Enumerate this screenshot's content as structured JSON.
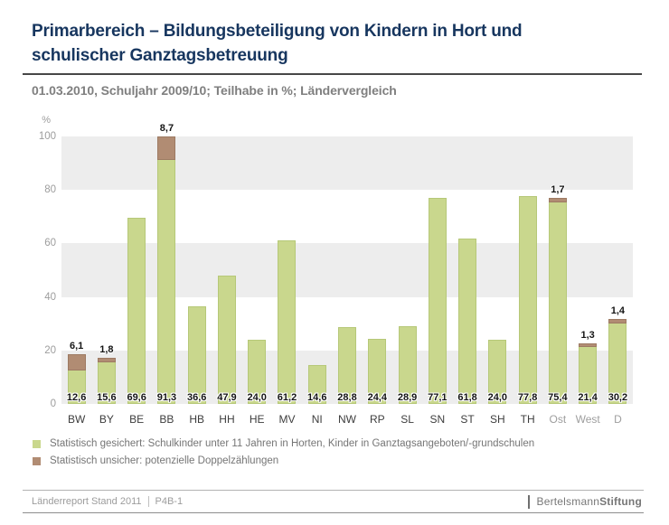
{
  "header": {
    "title_line1": "Primarbereich – Bildungsbeteiligung von Kindern in Hort und",
    "title_line2": "schulischer Ganztagsbetreuung",
    "subtitle": "01.03.2010, Schuljahr 2009/10; Teilhabe in %; Ländervergleich"
  },
  "chart_data": {
    "type": "bar",
    "stacked": true,
    "title": "Primarbereich – Bildungsbeteiligung von Kindern in Hort und schulischer Ganztagsbetreuung",
    "subtitle": "01.03.2010, Schuljahr 2009/10; Teilhabe in %; Ländervergleich",
    "unit_label": "%",
    "ylim": [
      0,
      100
    ],
    "y_ticks": [
      100,
      80,
      60,
      40,
      20,
      0
    ],
    "bands": [
      [
        0,
        20
      ],
      [
        40,
        60
      ],
      [
        80,
        100
      ]
    ],
    "band_color": "#ededed",
    "categories": [
      "BW",
      "BY",
      "BE",
      "BB",
      "HB",
      "HH",
      "HE",
      "MV",
      "NI",
      "NW",
      "RP",
      "SL",
      "SN",
      "ST",
      "SH",
      "TH",
      "Ost",
      "West",
      "D"
    ],
    "muted_categories": [
      "Ost",
      "West",
      "D"
    ],
    "series": [
      {
        "name": "Statistisch gesichert: Schulkinder unter 11 Jahren in Horten, Kinder in Ganztagsangeboten/-grundschulen",
        "color": "#c9d78d",
        "values": [
          12.6,
          15.6,
          69.6,
          91.3,
          36.6,
          47.9,
          24.0,
          61.2,
          14.6,
          28.8,
          24.4,
          28.9,
          77.1,
          61.8,
          24.0,
          77.8,
          75.4,
          21.4,
          30.2
        ]
      },
      {
        "name": "Statistisch unsicher: potenzielle Doppelzählungen",
        "color": "#b18c73",
        "values": [
          6.1,
          1.8,
          0,
          8.7,
          0,
          0,
          0,
          0,
          0,
          0,
          0,
          0,
          0,
          0,
          0,
          0,
          1.7,
          1.3,
          1.4
        ]
      }
    ],
    "value_labels": [
      "12,6",
      "15,6",
      "69,6",
      "91,3",
      "36,6",
      "47,9",
      "24,0",
      "61,2",
      "14,6",
      "28,8",
      "24,4",
      "28,9",
      "77,1",
      "61,8",
      "24,0",
      "77,8",
      "75,4",
      "21,4",
      "30,2"
    ],
    "cap_labels": [
      "6,1",
      "1,8",
      "",
      "8,7",
      "",
      "",
      "",
      "",
      "",
      "",
      "",
      "",
      "",
      "",
      "",
      "",
      "1,7",
      "1,3",
      "1,4"
    ],
    "legend_position": "bottom"
  },
  "footer": {
    "left_text": "Länderreport Stand 2011",
    "code": "P4B-1",
    "brand_1": "Bertelsmann",
    "brand_2": "Stiftung"
  }
}
